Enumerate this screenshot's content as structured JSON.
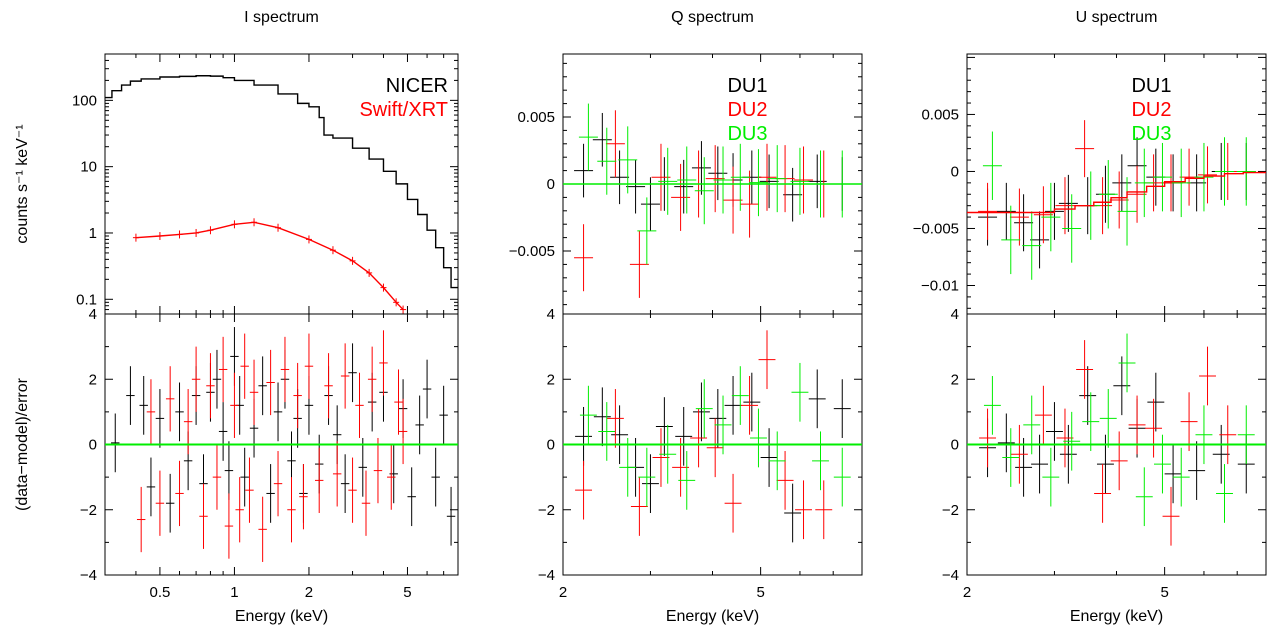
{
  "colors": {
    "black": "#000000",
    "red": "#ff0000",
    "green": "#00ee00"
  },
  "chart_data": [
    {
      "type": "line",
      "panel": "I spectrum",
      "title": "I spectrum",
      "xlabel": "Energy (keV)",
      "xscale": "log",
      "xlim": [
        0.3,
        8.0
      ],
      "xticks": [
        0.5,
        1,
        2,
        5
      ],
      "top": {
        "ylabel": "counts s⁻¹ keV⁻¹",
        "yscale": "log",
        "ylim": [
          0.06,
          500
        ],
        "yticks": [
          {
            "v": 0.1,
            "label": "0.1"
          },
          {
            "v": 1,
            "label": "1"
          },
          {
            "v": 10,
            "label": "10"
          },
          {
            "v": 100,
            "label": "100"
          }
        ],
        "legend": [
          {
            "text": "NICER",
            "color": "black"
          },
          {
            "text": "Swift/XRT",
            "color": "red"
          }
        ],
        "series": [
          {
            "name": "NICER",
            "color": "black",
            "style": "step",
            "x": [
              0.3,
              0.32,
              0.35,
              0.38,
              0.42,
              0.5,
              0.6,
              0.7,
              0.8,
              0.9,
              1.0,
              1.2,
              1.5,
              1.8,
              2.0,
              2.2,
              2.3,
              2.5,
              3.0,
              3.5,
              4.0,
              4.5,
              5.0,
              5.5,
              6.0,
              6.5,
              7.0,
              7.5,
              8.0
            ],
            "y": [
              110,
              140,
              170,
              195,
              210,
              225,
              230,
              235,
              232,
              220,
              200,
              170,
              125,
              90,
              80,
              55,
              30,
              27,
              19,
              13,
              8.5,
              5.5,
              3.2,
              1.9,
              1.1,
              0.6,
              0.3,
              0.15,
              0.08
            ]
          },
          {
            "name": "Swift/XRT",
            "color": "red",
            "style": "model",
            "x": [
              0.4,
              0.5,
              0.6,
              0.7,
              0.8,
              1.0,
              1.2,
              1.5,
              2.0,
              2.5,
              3.0,
              3.5,
              4.0,
              4.5,
              4.8
            ],
            "y": [
              0.85,
              0.9,
              0.95,
              1.0,
              1.1,
              1.35,
              1.45,
              1.2,
              0.8,
              0.55,
              0.38,
              0.25,
              0.15,
              0.09,
              0.07
            ]
          }
        ]
      },
      "bottom": {
        "ylabel": "(data−model)/error",
        "ylim": [
          -4,
          4
        ],
        "yticks": [
          {
            "v": -4,
            "label": "−4"
          },
          {
            "v": -2,
            "label": "−2"
          },
          {
            "v": 0,
            "label": "0"
          },
          {
            "v": 2,
            "label": "2"
          },
          {
            "v": 4,
            "label": "4"
          }
        ],
        "series": [
          {
            "name": "NICER",
            "color": "black",
            "x": [
              0.33,
              0.38,
              0.43,
              0.46,
              0.5,
              0.55,
              0.6,
              0.65,
              0.7,
              0.75,
              0.8,
              0.85,
              0.9,
              0.95,
              1.0,
              1.05,
              1.1,
              1.2,
              1.3,
              1.4,
              1.5,
              1.6,
              1.7,
              1.8,
              1.9,
              2.0,
              2.2,
              2.4,
              2.6,
              2.8,
              3.0,
              3.3,
              3.6,
              4.0,
              4.4,
              4.8,
              5.2,
              5.6,
              6.0,
              6.5,
              7.0,
              7.5
            ],
            "y": [
              0.05,
              1.5,
              1.2,
              -1.3,
              0.8,
              -1.8,
              1.0,
              -0.5,
              1.5,
              -1.2,
              1.6,
              2.0,
              0.4,
              -0.8,
              2.7,
              1.2,
              -1.0,
              0.5,
              1.8,
              -1.5,
              1.0,
              2.0,
              -0.5,
              0.8,
              -1.5,
              1.2,
              -0.6,
              1.5,
              0.3,
              -1.2,
              2.2,
              -0.7,
              1.3,
              1.6,
              -0.9,
              1.1,
              -1.6,
              0.6,
              1.7,
              -1.0,
              0.9,
              -2.2
            ],
            "yerr": 0.9
          },
          {
            "name": "Swift/XRT",
            "color": "red",
            "x": [
              0.42,
              0.46,
              0.5,
              0.55,
              0.6,
              0.65,
              0.7,
              0.75,
              0.8,
              0.85,
              0.9,
              0.95,
              1.0,
              1.05,
              1.1,
              1.15,
              1.2,
              1.3,
              1.4,
              1.5,
              1.6,
              1.7,
              1.8,
              1.9,
              2.0,
              2.2,
              2.4,
              2.6,
              2.8,
              3.0,
              3.2,
              3.4,
              3.6,
              3.8,
              4.0,
              4.3,
              4.6,
              4.8
            ],
            "y": [
              -2.3,
              1.0,
              -1.8,
              1.4,
              -1.5,
              0.7,
              2.0,
              -2.2,
              1.8,
              -1.0,
              2.3,
              -2.5,
              1.2,
              -2.0,
              2.4,
              -1.4,
              1.6,
              -2.6,
              1.9,
              -1.2,
              2.3,
              -2.0,
              1.5,
              -1.6,
              2.4,
              -1.1,
              1.8,
              -0.9,
              2.1,
              -1.4,
              1.2,
              -1.8,
              2.0,
              -0.8,
              2.5,
              -1.0,
              1.3,
              0.4
            ],
            "yerr": 1.0
          }
        ],
        "zero_line_color": "green"
      }
    },
    {
      "type": "line",
      "panel": "Q spectrum",
      "title": "Q spectrum",
      "xlabel": "Energy (keV)",
      "xscale": "log",
      "xlim": [
        2,
        8
      ],
      "xticks": [
        {
          "v": 2,
          "label": "2"
        },
        {
          "v": 5,
          "label": "5"
        }
      ],
      "top": {
        "yscale": "linear",
        "ylim": [
          -0.0097,
          0.0097
        ],
        "yticks": [
          {
            "v": -0.005,
            "label": "−0.005"
          },
          {
            "v": 0,
            "label": "0"
          },
          {
            "v": 0.005,
            "label": "0.005"
          }
        ],
        "legend": [
          {
            "text": "DU1",
            "color": "black"
          },
          {
            "text": "DU2",
            "color": "red"
          },
          {
            "text": "DU3",
            "color": "green"
          }
        ],
        "series": [
          {
            "name": "DU1",
            "color": "black",
            "x": [
              2.2,
              2.4,
              2.6,
              2.8,
              3.0,
              3.2,
              3.5,
              3.8,
              4.1,
              4.4,
              4.8,
              5.2,
              5.8,
              6.5,
              7.3
            ],
            "y": [
              0.001,
              0.0033,
              0.0005,
              -0.0002,
              -0.0015,
              0.0,
              -0.0002,
              0.0012,
              0.0008,
              0.0003,
              0.0005,
              0.0002,
              -0.0008,
              0.0002,
              0.0
            ],
            "yerr": 0.002
          },
          {
            "name": "DU2",
            "color": "red",
            "x": [
              2.2,
              2.55,
              2.85,
              3.15,
              3.45,
              3.75,
              4.05,
              4.4,
              4.75,
              5.15,
              5.6,
              6.1,
              6.7
            ],
            "y": [
              -0.0055,
              0.003,
              -0.006,
              0.0005,
              -0.001,
              0.0,
              0.0004,
              -0.0012,
              -0.0015,
              0.0005,
              0.0004,
              0.0003,
              0.0
            ],
            "yerr": 0.0025
          },
          {
            "name": "DU3",
            "color": "green",
            "x": [
              2.25,
              2.45,
              2.7,
              2.95,
              3.25,
              3.55,
              3.85,
              4.2,
              4.55,
              4.95,
              5.4,
              6.0,
              6.6,
              7.3
            ],
            "y": [
              0.0035,
              0.0017,
              0.0018,
              -0.0035,
              0.0002,
              0.0003,
              -0.0005,
              0.0003,
              0.0005,
              0.0001,
              0.0004,
              0.0002,
              0.0,
              0.0
            ],
            "yerr": 0.0025
          }
        ],
        "model": {
          "color": "green",
          "x": [
            2,
            8
          ],
          "y": [
            0.0,
            0.0
          ]
        }
      },
      "bottom": {
        "ylim": [
          -4,
          4
        ],
        "yticks": [
          {
            "v": -4,
            "label": "−4"
          },
          {
            "v": -2,
            "label": "−2"
          },
          {
            "v": 0,
            "label": "0"
          },
          {
            "v": 2,
            "label": "2"
          },
          {
            "v": 4,
            "label": "4"
          }
        ],
        "series": [
          {
            "name": "DU1",
            "color": "black",
            "x": [
              2.2,
              2.4,
              2.6,
              2.8,
              3.0,
              3.2,
              3.5,
              3.8,
              4.1,
              4.4,
              4.8,
              5.2,
              5.8,
              6.5,
              7.3
            ],
            "y": [
              0.25,
              0.85,
              0.3,
              -0.7,
              -1.2,
              0.55,
              0.25,
              1.0,
              0.8,
              1.2,
              1.3,
              -0.4,
              -2.1,
              1.4,
              1.1
            ],
            "yerr": 0.9
          },
          {
            "name": "DU2",
            "color": "red",
            "x": [
              2.2,
              2.55,
              2.85,
              3.15,
              3.45,
              3.75,
              4.05,
              4.4,
              4.75,
              5.15,
              5.6,
              6.1,
              6.7
            ],
            "y": [
              -1.4,
              0.8,
              -1.9,
              -0.4,
              -0.7,
              0.2,
              -0.1,
              -1.8,
              1.2,
              2.6,
              -1.1,
              -2.0,
              -2.0
            ],
            "yerr": 0.9
          },
          {
            "name": "DU3",
            "color": "green",
            "x": [
              2.25,
              2.45,
              2.7,
              2.95,
              3.25,
              3.55,
              3.85,
              4.2,
              4.55,
              4.95,
              5.4,
              6.0,
              6.6,
              7.3
            ],
            "y": [
              0.9,
              0.4,
              -0.7,
              -1.0,
              -0.3,
              -1.1,
              1.1,
              0.6,
              1.5,
              0.2,
              -0.5,
              1.6,
              -0.5,
              -1.0
            ],
            "yerr": 0.9
          }
        ],
        "zero_line_color": "green"
      }
    },
    {
      "type": "line",
      "panel": "U spectrum",
      "title": "U spectrum",
      "xlabel": "Energy (keV)",
      "xscale": "log",
      "xlim": [
        2,
        8
      ],
      "xticks": [
        {
          "v": 2,
          "label": "2"
        },
        {
          "v": 5,
          "label": "5"
        }
      ],
      "top": {
        "yscale": "linear",
        "ylim": [
          -0.0125,
          0.0103
        ],
        "yticks": [
          {
            "v": -0.01,
            "label": "−0.01"
          },
          {
            "v": -0.005,
            "label": "−0.005"
          },
          {
            "v": 0,
            "label": "0"
          },
          {
            "v": 0.005,
            "label": "0.005"
          }
        ],
        "legend": [
          {
            "text": "DU1",
            "color": "black"
          },
          {
            "text": "DU2",
            "color": "red"
          },
          {
            "text": "DU3",
            "color": "green"
          }
        ],
        "series": [
          {
            "name": "DU1",
            "color": "black",
            "x": [
              2.2,
              2.4,
              2.6,
              2.8,
              3.0,
              3.2,
              3.5,
              3.8,
              4.1,
              4.4,
              4.8,
              5.2,
              5.8,
              6.5,
              7.3
            ],
            "y": [
              -0.004,
              -0.0035,
              -0.0045,
              -0.006,
              -0.0035,
              -0.0028,
              -0.003,
              -0.002,
              -0.001,
              0.0005,
              -0.0005,
              -0.001,
              -0.001,
              0.0,
              0.0
            ],
            "yerr": 0.0025
          },
          {
            "name": "DU2",
            "color": "red",
            "x": [
              2.2,
              2.55,
              2.85,
              3.15,
              3.45,
              3.75,
              4.05,
              4.4,
              4.75,
              5.15,
              5.6,
              6.1,
              6.7
            ],
            "y": [
              -0.0035,
              -0.004,
              -0.0038,
              -0.003,
              0.002,
              -0.003,
              -0.0025,
              -0.002,
              -0.001,
              -0.001,
              -0.0005,
              -0.0003,
              0.0
            ],
            "yerr": 0.0025
          },
          {
            "name": "DU3",
            "color": "green",
            "x": [
              2.25,
              2.45,
              2.7,
              2.95,
              3.25,
              3.55,
              3.85,
              4.2,
              4.55,
              4.95,
              5.4,
              6.0,
              6.6,
              7.3
            ],
            "y": [
              0.0005,
              -0.006,
              -0.0065,
              -0.004,
              -0.005,
              -0.003,
              -0.002,
              -0.0035,
              -0.001,
              -0.0005,
              -0.001,
              -0.0005,
              0.0,
              0.0
            ],
            "yerr": 0.003
          }
        ],
        "model": {
          "color": "red",
          "style": "step",
          "x": [
            2.0,
            2.8,
            3.0,
            3.3,
            3.6,
            3.9,
            4.2,
            4.6,
            5.0,
            5.5,
            6.0,
            6.6,
            7.2,
            8.0
          ],
          "y": [
            -0.0036,
            -0.0036,
            -0.0033,
            -0.003,
            -0.0027,
            -0.0023,
            -0.0018,
            -0.0013,
            -0.0009,
            -0.0006,
            -0.0004,
            -0.0002,
            -0.0001,
            0.0
          ]
        }
      },
      "bottom": {
        "ylim": [
          -4,
          4
        ],
        "yticks": [
          {
            "v": -4,
            "label": "−4"
          },
          {
            "v": -2,
            "label": "−2"
          },
          {
            "v": 0,
            "label": "0"
          },
          {
            "v": 2,
            "label": "2"
          },
          {
            "v": 4,
            "label": "4"
          }
        ],
        "series": [
          {
            "name": "DU1",
            "color": "black",
            "x": [
              2.2,
              2.4,
              2.6,
              2.8,
              3.0,
              3.2,
              3.5,
              3.8,
              4.1,
              4.4,
              4.8,
              5.2,
              5.8,
              6.5,
              7.3
            ],
            "y": [
              -0.1,
              0.05,
              -0.7,
              -0.6,
              0.4,
              -0.3,
              1.5,
              -0.6,
              1.8,
              0.5,
              1.3,
              -0.9,
              -0.8,
              -0.3,
              -0.6
            ],
            "yerr": 0.9
          },
          {
            "name": "DU2",
            "color": "red",
            "x": [
              2.2,
              2.55,
              2.85,
              3.15,
              3.45,
              3.75,
              4.05,
              4.4,
              4.75,
              5.15,
              5.6,
              6.1,
              6.7
            ],
            "y": [
              0.2,
              -0.3,
              0.9,
              0.2,
              2.3,
              -1.5,
              -0.5,
              0.6,
              0.5,
              -2.2,
              0.7,
              2.1,
              0.3
            ],
            "yerr": 0.9
          },
          {
            "name": "DU3",
            "color": "green",
            "x": [
              2.25,
              2.45,
              2.7,
              2.95,
              3.25,
              3.55,
              3.85,
              4.2,
              4.55,
              4.95,
              5.4,
              6.0,
              6.6,
              7.3
            ],
            "y": [
              1.2,
              -0.4,
              0.6,
              -1.0,
              0.1,
              0.7,
              0.8,
              2.5,
              -1.6,
              -0.6,
              -1.0,
              0.3,
              -1.5,
              0.3
            ],
            "yerr": 0.9
          }
        ],
        "zero_line_color": "green"
      }
    }
  ]
}
